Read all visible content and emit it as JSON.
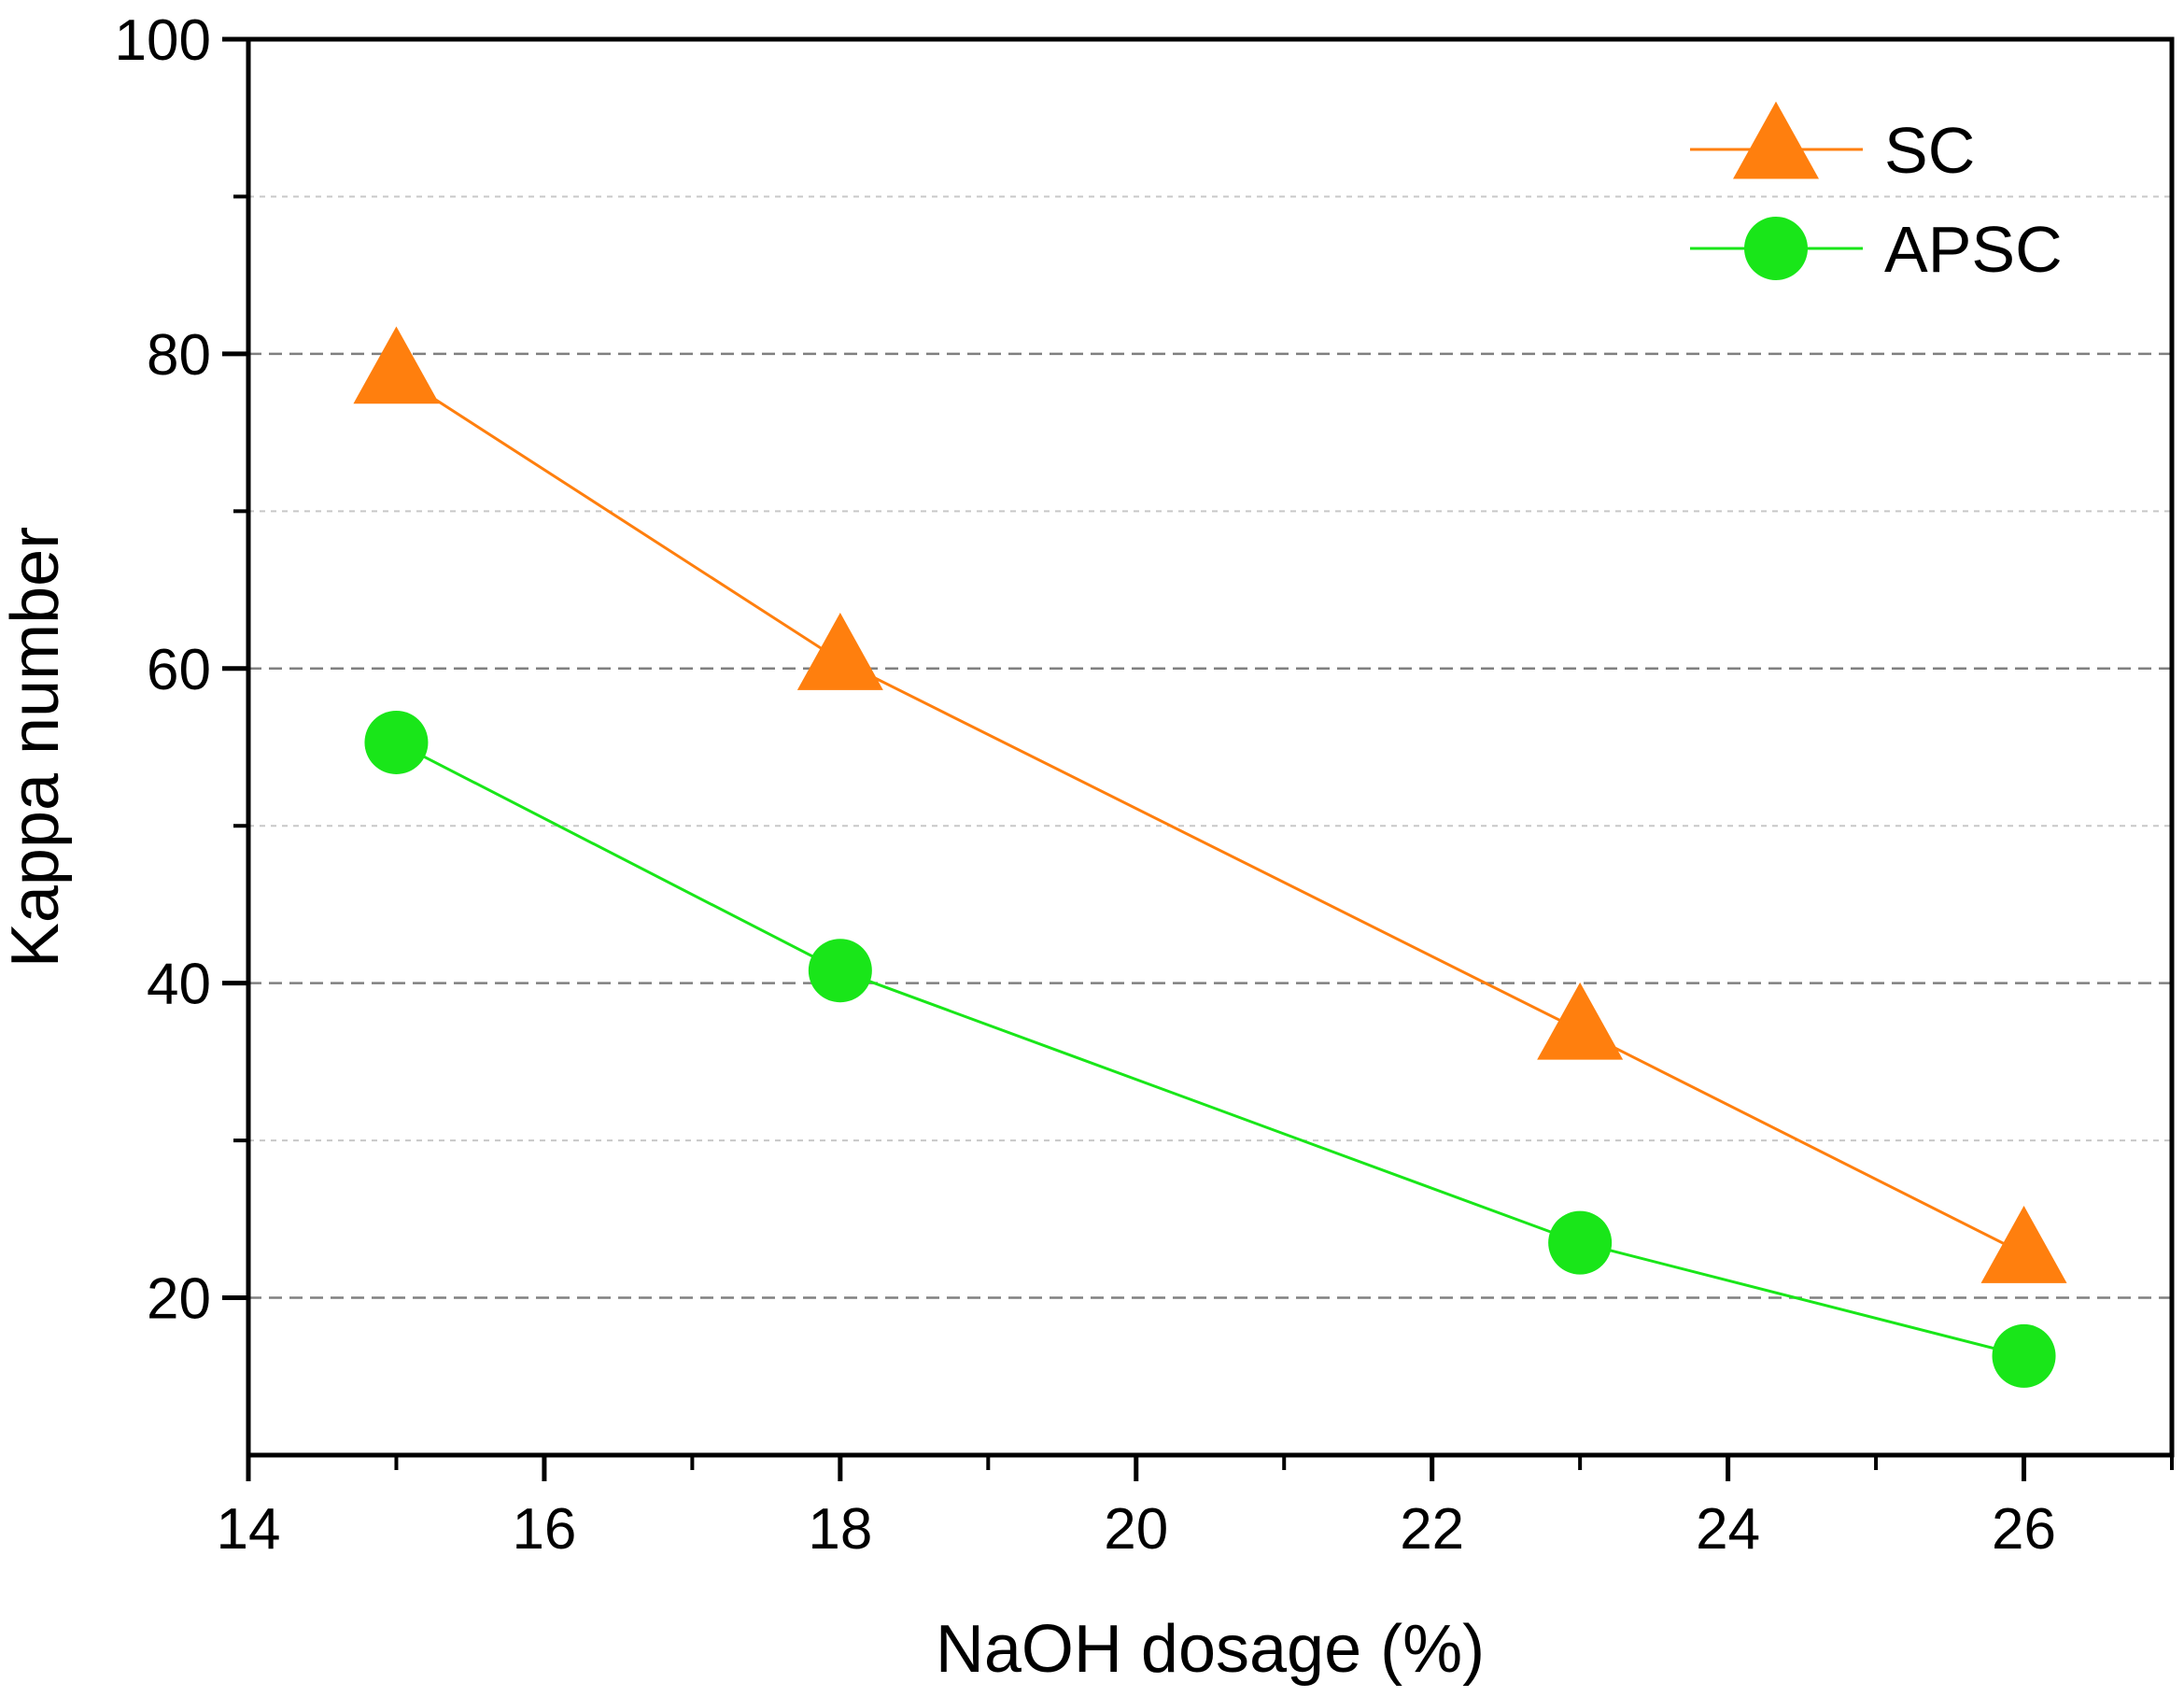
{
  "chart_data": {
    "type": "line",
    "title": "",
    "xlabel": "NaOH dosage (%)",
    "ylabel": "Kappa number",
    "xlim": [
      14,
      27
    ],
    "ylim": [
      10,
      100
    ],
    "x_ticks": [
      14,
      16,
      18,
      20,
      22,
      24,
      26
    ],
    "x_tick_labels": [
      "14",
      "16",
      "18",
      "20",
      "22",
      "24",
      "26"
    ],
    "y_ticks": [
      20,
      40,
      60,
      80,
      100
    ],
    "y_tick_labels": [
      "20",
      "40",
      "60",
      "80",
      "100"
    ],
    "x_minor_ticks": [
      15,
      17,
      19,
      21,
      23,
      25,
      27
    ],
    "y_minor_ticks": [
      30,
      50,
      70,
      90
    ],
    "grid": {
      "major_y": [
        20,
        40,
        60,
        80
      ],
      "minor_y": [
        30,
        50,
        70,
        90
      ]
    },
    "legend_position": "top-right",
    "series": [
      {
        "name": "SC",
        "marker": "triangle",
        "color": "#ff7f0e",
        "x": [
          15,
          18,
          23,
          26
        ],
        "y": [
          78.7,
          60.5,
          37.0,
          22.8
        ]
      },
      {
        "name": "APSC",
        "marker": "circle",
        "color": "#19e619",
        "x": [
          15,
          18,
          23,
          26
        ],
        "y": [
          55.3,
          40.8,
          23.5,
          16.3
        ]
      }
    ]
  }
}
